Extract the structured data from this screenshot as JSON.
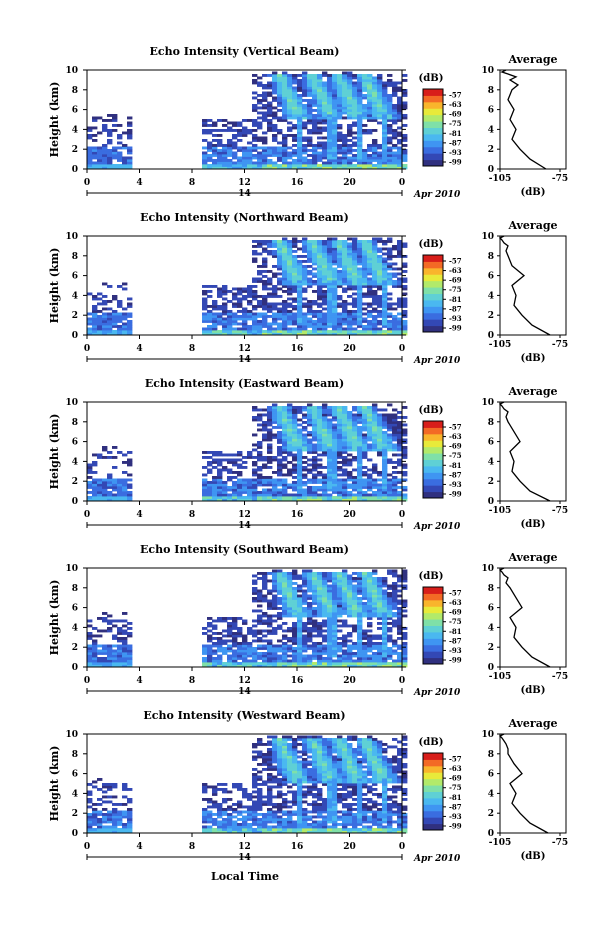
{
  "colors": {
    "scale": [
      "#30307f",
      "#3348b5",
      "#3a6de0",
      "#3f95f2",
      "#4ab8f0",
      "#5fd0d5",
      "#7fe0a8",
      "#b2ea6a",
      "#e8ea3a",
      "#f9b52c",
      "#f36a25",
      "#d81e1a"
    ],
    "background": "#ffffff",
    "axis": "#000000"
  },
  "colorbar": {
    "unit": "(dB)",
    "ticks": [
      "-57",
      "-63",
      "-69",
      "-75",
      "-81",
      "-87",
      "-93",
      "-99"
    ]
  },
  "xaxis": {
    "ticks": [
      "0",
      "4",
      "8",
      "12",
      "16",
      "20",
      "0"
    ],
    "day": "14",
    "date": "Apr 2010",
    "label": "Local Time"
  },
  "yaxis": {
    "label": "Height (km)",
    "ticks": [
      "0",
      "2",
      "4",
      "6",
      "8",
      "10"
    ]
  },
  "profile": {
    "title": "Average",
    "xticks": [
      "-105",
      "-75"
    ],
    "xlabel": "(dB)"
  },
  "chart_data": [
    {
      "type": "heatmap",
      "title": "Echo Intensity (Vertical Beam)",
      "xlabel": "Local Time",
      "ylabel": "Height (km)",
      "xlim": [
        0,
        24
      ],
      "ylim": [
        0,
        10
      ],
      "colorbar_range_db": [
        -99,
        -57
      ],
      "data_gap_hours": [
        3.3,
        8.5
      ],
      "convective_cells_hours": [
        16,
        18.5,
        20.5,
        22.5
      ],
      "average_profile": {
        "x_db": [
          -82,
          -90,
          -95,
          -99,
          -97,
          -100,
          -98,
          -101,
          -99,
          -96,
          -100,
          -97,
          -101,
          -104,
          -102
        ],
        "y_km": [
          0,
          1,
          2,
          3,
          4,
          5,
          6,
          7,
          8,
          8.5,
          9,
          9.3,
          9.6,
          9.8,
          10
        ]
      }
    },
    {
      "type": "heatmap",
      "title": "Echo Intensity (Northward Beam)",
      "xlabel": "Local Time",
      "ylabel": "Height (km)",
      "xlim": [
        0,
        24
      ],
      "ylim": [
        0,
        10
      ],
      "colorbar_range_db": [
        -99,
        -57
      ],
      "data_gap_hours": [
        3.3,
        8.5
      ],
      "convective_cells_hours": [
        16,
        18.5,
        20.5,
        22.5
      ],
      "average_profile": {
        "x_db": [
          -80,
          -89,
          -94,
          -98,
          -97,
          -99,
          -93,
          -99,
          -101,
          -102,
          -101,
          -103,
          -104,
          -105,
          -103
        ],
        "y_km": [
          0,
          1,
          2,
          3,
          4,
          5,
          6,
          7,
          8,
          8.5,
          9,
          9.3,
          9.6,
          9.8,
          10
        ]
      }
    },
    {
      "type": "heatmap",
      "title": "Echo Intensity (Eastward Beam)",
      "xlabel": "Local Time",
      "ylabel": "Height (km)",
      "xlim": [
        0,
        24
      ],
      "ylim": [
        0,
        10
      ],
      "colorbar_range_db": [
        -99,
        -57
      ],
      "data_gap_hours": [
        3.3,
        8.5
      ],
      "convective_cells_hours": [
        16,
        18.5,
        20.5,
        22.5
      ],
      "average_profile": {
        "x_db": [
          -80,
          -90,
          -95,
          -99,
          -98,
          -100,
          -95,
          -98,
          -101,
          -102,
          -101,
          -103,
          -104,
          -105,
          -103
        ],
        "y_km": [
          0,
          1,
          2,
          3,
          4,
          5,
          6,
          7,
          8,
          8.5,
          9,
          9.3,
          9.6,
          9.8,
          10
        ]
      }
    },
    {
      "type": "heatmap",
      "title": "Echo Intensity (Southward Beam)",
      "xlabel": "Local Time",
      "ylabel": "Height (km)",
      "xlim": [
        0,
        24
      ],
      "ylim": [
        0,
        10
      ],
      "colorbar_range_db": [
        -99,
        -57
      ],
      "data_gap_hours": [
        3.3,
        8.5
      ],
      "convective_cells_hours": [
        16,
        18.5,
        20.5,
        22.5
      ],
      "average_profile": {
        "x_db": [
          -80,
          -89,
          -94,
          -98,
          -97,
          -100,
          -94,
          -97,
          -100,
          -102,
          -101,
          -103,
          -104,
          -105,
          -103
        ],
        "y_km": [
          0,
          1,
          2,
          3,
          4,
          5,
          6,
          7,
          8,
          8.5,
          9,
          9.3,
          9.6,
          9.8,
          10
        ]
      }
    },
    {
      "type": "heatmap",
      "title": "Echo Intensity (Westward Beam)",
      "xlabel": "Local Time",
      "ylabel": "Height (km)",
      "xlim": [
        0,
        24
      ],
      "ylim": [
        0,
        10
      ],
      "colorbar_range_db": [
        -99,
        -57
      ],
      "data_gap_hours": [
        3.3,
        8.5
      ],
      "convective_cells_hours": [
        16,
        18.5,
        20.5,
        22.5
      ],
      "average_profile": {
        "x_db": [
          -81,
          -90,
          -95,
          -99,
          -97,
          -100,
          -94,
          -98,
          -101,
          -101,
          -102,
          -103,
          -104,
          -105,
          -103
        ],
        "y_km": [
          0,
          1,
          2,
          3,
          4,
          5,
          6,
          7,
          8,
          8.5,
          9,
          9.3,
          9.6,
          9.8,
          10
        ]
      }
    }
  ]
}
